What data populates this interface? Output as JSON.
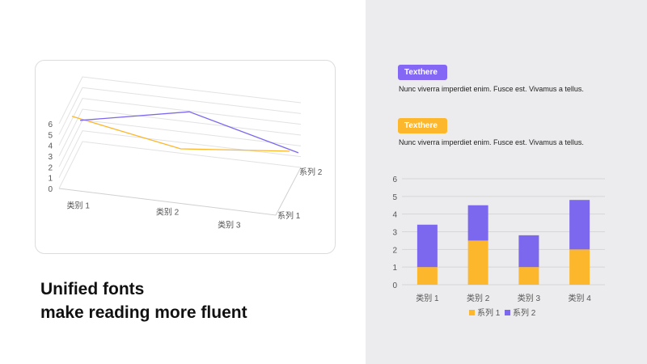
{
  "headline": {
    "line1": "Unified fonts",
    "line2": "make reading more fluent"
  },
  "colors": {
    "series1": "#fcb72d",
    "series2": "#7b68ee",
    "panel_bg": "#ececee"
  },
  "tags": [
    {
      "label": "Texthere",
      "text": "Nunc viverra imperdiet enim. Fusce est. Vivamus a tellus.",
      "color": "#8467f5"
    },
    {
      "label": "Texthere",
      "text": "Nunc viverra imperdiet enim. Fusce est. Vivamus a tellus.",
      "color": "#fcb72d"
    }
  ],
  "chart_data": [
    {
      "type": "line",
      "style": "3d",
      "categories": [
        "类别 1",
        "类别 2",
        "类别 3"
      ],
      "depth_labels": [
        "系列 1",
        "系列 2"
      ],
      "y_ticks": [
        "0",
        "1",
        "2",
        "3",
        "4",
        "5",
        "6"
      ],
      "ylim": [
        0,
        6
      ],
      "series": [
        {
          "name": "系列 1",
          "values": [
            4.3,
            2.5,
            3.5
          ],
          "color": "#fcb72d"
        },
        {
          "name": "系列 2",
          "values": [
            2.4,
            4.4,
            1.8
          ],
          "color": "#7b68ee"
        }
      ]
    },
    {
      "type": "bar",
      "stacked": true,
      "categories": [
        "类别 1",
        "类别 2",
        "类别 3",
        "类别 4"
      ],
      "y_ticks": [
        "0",
        "1",
        "2",
        "3",
        "4",
        "5",
        "6"
      ],
      "ylim": [
        0,
        6
      ],
      "grid": true,
      "legend_position": "bottom",
      "series": [
        {
          "name": "系列 1",
          "values": [
            1,
            2.5,
            1,
            2
          ],
          "color": "#fcb72d"
        },
        {
          "name": "系列 2",
          "values": [
            2.4,
            2,
            1.8,
            2.8
          ],
          "color": "#7b68ee"
        }
      ]
    }
  ]
}
